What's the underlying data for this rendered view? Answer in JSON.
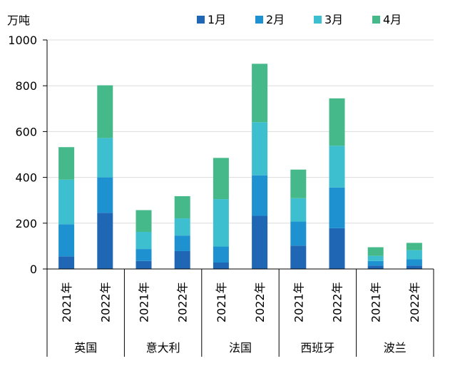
{
  "chart_data": {
    "type": "bar",
    "stacked": true,
    "unit_label": "万吨",
    "ylim": [
      0,
      1000
    ],
    "yticks": [
      0,
      200,
      400,
      600,
      800,
      1000
    ],
    "grid": true,
    "legend_position": "top",
    "groups": [
      {
        "label": "英国",
        "years": [
          "2021年",
          "2022年"
        ]
      },
      {
        "label": "意大利",
        "years": [
          "2021年",
          "2022年"
        ]
      },
      {
        "label": "法国",
        "years": [
          "2021年",
          "2022年"
        ]
      },
      {
        "label": "西班牙",
        "years": [
          "2021年",
          "2022年"
        ]
      },
      {
        "label": "波兰",
        "years": [
          "2021年",
          "2022年"
        ]
      }
    ],
    "series": [
      {
        "name": "1月",
        "color": "#1f67b4",
        "values": [
          55,
          245,
          35,
          78,
          28,
          232,
          102,
          178,
          15,
          15
        ]
      },
      {
        "name": "2月",
        "color": "#1e91d0",
        "values": [
          140,
          155,
          52,
          68,
          70,
          177,
          105,
          178,
          20,
          27
        ]
      },
      {
        "name": "3月",
        "color": "#3ebfcf",
        "values": [
          195,
          172,
          75,
          75,
          207,
          232,
          102,
          182,
          22,
          40
        ]
      },
      {
        "name": "4月",
        "color": "#45b98a",
        "values": [
          142,
          230,
          95,
          97,
          180,
          255,
          125,
          207,
          38,
          32
        ]
      }
    ]
  }
}
